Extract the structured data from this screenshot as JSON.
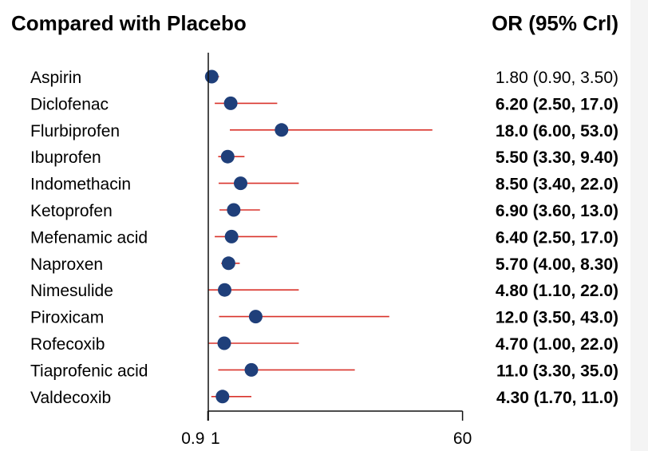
{
  "header": {
    "left": "Compared with Placebo",
    "right": "OR (95% Crl)"
  },
  "colors": {
    "point": "#1f3f7a",
    "ci_line": "#d9332b",
    "axis": "#111111"
  },
  "chart_data": {
    "type": "forest",
    "x_axis": {
      "scale": "linear",
      "range": [
        0.9,
        60
      ],
      "ticks": [
        0.9,
        1,
        60
      ],
      "tick_labels": [
        "0.9",
        "1",
        "60"
      ],
      "reference_line": 1
    },
    "rows": [
      {
        "label": "Aspirin",
        "or": 1.8,
        "lo": 0.9,
        "hi": 3.5,
        "text": "1.80 (0.90, 3.50)",
        "bold": false
      },
      {
        "label": "Diclofenac",
        "or": 6.2,
        "lo": 2.5,
        "hi": 17.0,
        "text": "6.20 (2.50, 17.0)",
        "bold": true
      },
      {
        "label": "Flurbiprofen",
        "or": 18.0,
        "lo": 6.0,
        "hi": 53.0,
        "text": "18.0 (6.00, 53.0)",
        "bold": true
      },
      {
        "label": "Ibuprofen",
        "or": 5.5,
        "lo": 3.3,
        "hi": 9.4,
        "text": "5.50 (3.30, 9.40)",
        "bold": true
      },
      {
        "label": "Indomethacin",
        "or": 8.5,
        "lo": 3.4,
        "hi": 22.0,
        "text": "8.50 (3.40, 22.0)",
        "bold": true
      },
      {
        "label": "Ketoprofen",
        "or": 6.9,
        "lo": 3.6,
        "hi": 13.0,
        "text": "6.90 (3.60, 13.0)",
        "bold": true
      },
      {
        "label": "Mefenamic acid",
        "or": 6.4,
        "lo": 2.5,
        "hi": 17.0,
        "text": "6.40 (2.50, 17.0)",
        "bold": true
      },
      {
        "label": "Naproxen",
        "or": 5.7,
        "lo": 4.0,
        "hi": 8.3,
        "text": "5.70 (4.00, 8.30)",
        "bold": true
      },
      {
        "label": "Nimesulide",
        "or": 4.8,
        "lo": 1.1,
        "hi": 22.0,
        "text": "4.80 (1.10, 22.0)",
        "bold": true
      },
      {
        "label": "Piroxicam",
        "or": 12.0,
        "lo": 3.5,
        "hi": 43.0,
        "text": "12.0 (3.50, 43.0)",
        "bold": true
      },
      {
        "label": "Rofecoxib",
        "or": 4.7,
        "lo": 1.0,
        "hi": 22.0,
        "text": "4.70 (1.00, 22.0)",
        "bold": true
      },
      {
        "label": "Tiaprofenic acid",
        "or": 11.0,
        "lo": 3.3,
        "hi": 35.0,
        "text": "11.0 (3.30, 35.0)",
        "bold": true
      },
      {
        "label": "Valdecoxib",
        "or": 4.3,
        "lo": 1.7,
        "hi": 11.0,
        "text": "4.30 (1.70, 11.0)",
        "bold": true
      }
    ]
  }
}
